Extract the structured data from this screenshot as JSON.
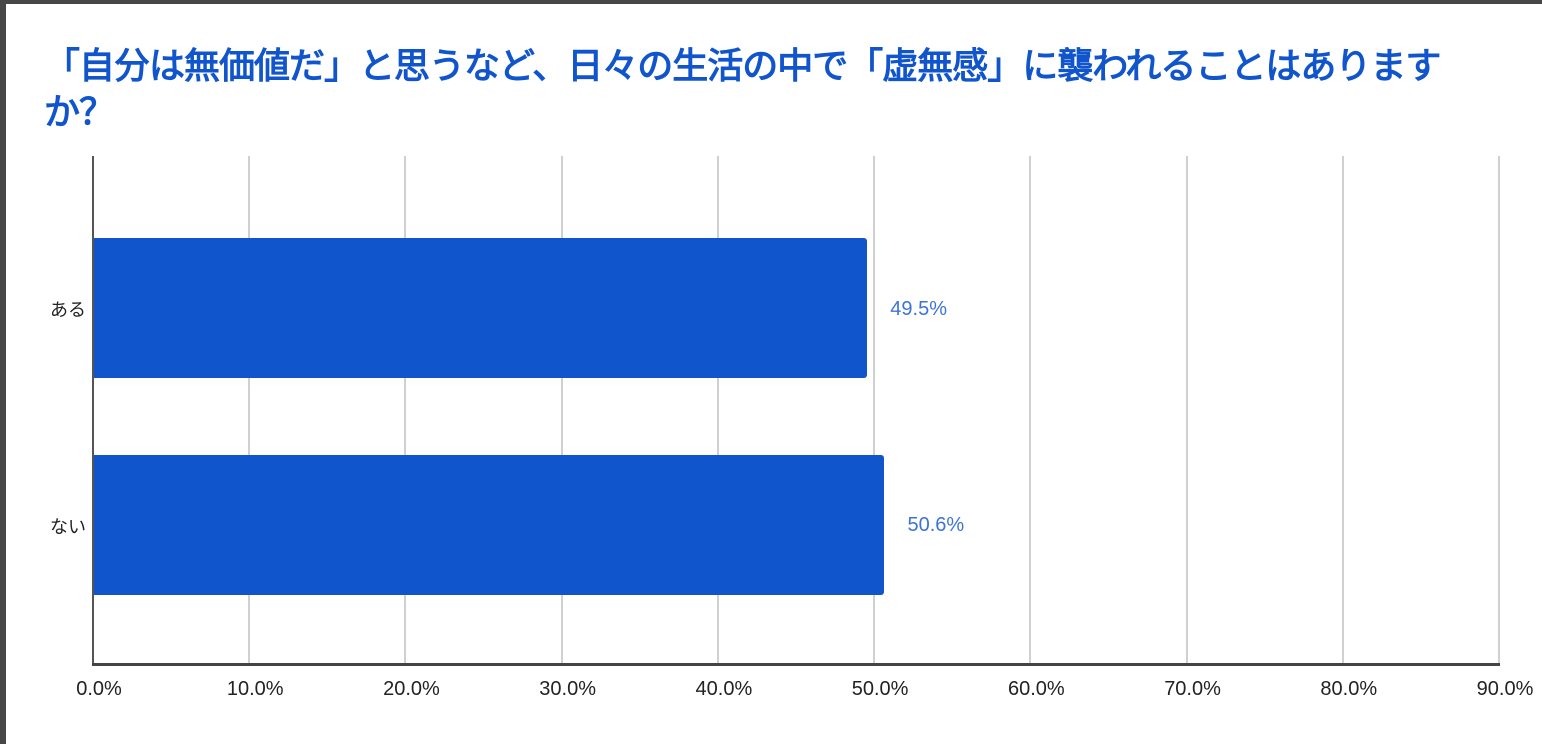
{
  "title": "「自分は無価値だ」と思うなど、日々の生活の中で「虚無感」に襲われることはありますか？",
  "colors": {
    "bar": "#1155cc",
    "title": "#1155cc",
    "data_label": "#3c74d6",
    "grid": "#d0d0d0"
  },
  "chart_data": {
    "type": "bar",
    "orientation": "horizontal",
    "title": "「自分は無価値だ」と思うなど、日々の生活の中で「虚無感」に襲われることはありますか？",
    "categories": [
      "ある",
      "ない"
    ],
    "values": [
      49.5,
      50.6
    ],
    "data_labels": [
      "49.5%",
      "50.6%"
    ],
    "xlabel": "",
    "ylabel": "",
    "xlim": [
      0,
      90
    ],
    "x_ticks": [
      "0.0%",
      "10.0%",
      "20.0%",
      "30.0%",
      "40.0%",
      "50.0%",
      "60.0%",
      "70.0%",
      "80.0%",
      "90.0%"
    ],
    "grid": true,
    "legend": "none"
  }
}
